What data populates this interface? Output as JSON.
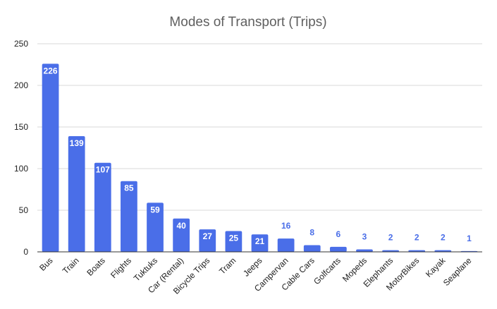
{
  "chart_data": {
    "type": "bar",
    "title": "Modes of Transport (Trips)",
    "xlabel": "",
    "ylabel": "",
    "categories": [
      "Bus",
      "Train",
      "Boats",
      "Flights",
      "Tuktuks",
      "Car (Rental)",
      "Bicycle Trips",
      "Tram",
      "Jeeps",
      "Campervan",
      "Cable Cars",
      "Golfcarts",
      "Mopeds",
      "Elephants",
      "MotorBikes",
      "Kayak",
      "Seaplane"
    ],
    "values": [
      226,
      139,
      107,
      85,
      59,
      40,
      27,
      25,
      21,
      16,
      8,
      6,
      3,
      2,
      2,
      2,
      1
    ],
    "ylim": [
      0,
      250
    ],
    "yticks": [
      0,
      50,
      100,
      150,
      200,
      250
    ],
    "grid": true,
    "legend": "none",
    "bar_color": "#4a6ee8",
    "label_inside_color": "#ffffff",
    "label_outside_color": "#4a6ee8"
  }
}
